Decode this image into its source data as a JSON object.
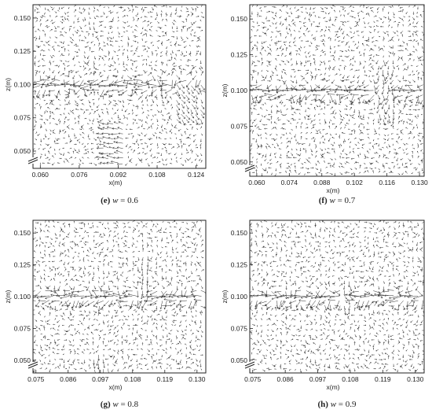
{
  "chart_data": [
    {
      "type": "vector-field",
      "caption_letter": "(e)",
      "caption_var": "w",
      "caption_value": "= 0.6",
      "xlabel": "x(m)",
      "ylabel": "z(m)",
      "x_ticks": [
        "0.060",
        "0.076",
        "0.092",
        "0.108",
        "0.124"
      ],
      "x_tick_values": [
        0.06,
        0.076,
        0.092,
        0.108,
        0.124
      ],
      "xlim": [
        0.057,
        0.128
      ],
      "y_ticks": [
        "0.150",
        "0.125",
        "0.100",
        "0.075",
        "0.050"
      ],
      "y_tick_values": [
        0.15,
        0.125,
        0.1,
        0.075,
        0.05
      ],
      "ylim": [
        0.037,
        0.16
      ],
      "shear_layer_z": 0.1,
      "features": [
        "strong horizontal jet along z = 0.100 m",
        "downward plume near x = 0.088–0.095 m",
        "deflected flow near x = 0.120 m"
      ]
    },
    {
      "type": "vector-field",
      "caption_letter": "(f)",
      "caption_var": "w",
      "caption_value": "= 0.7",
      "xlabel": "x(m)",
      "ylabel": "z(m)",
      "x_ticks": [
        "0.060",
        "0.074",
        "0.088",
        "0.102",
        "0.116",
        "0.130"
      ],
      "x_tick_values": [
        0.06,
        0.074,
        0.088,
        0.102,
        0.116,
        0.13
      ],
      "xlim": [
        0.057,
        0.132
      ],
      "y_ticks": [
        "0.150",
        "0.125",
        "0.100",
        "0.075",
        "0.050"
      ],
      "y_tick_values": [
        0.15,
        0.125,
        0.1,
        0.075,
        0.05
      ],
      "ylim": [
        0.04,
        0.16
      ],
      "shear_layer_z": 0.1,
      "features": [
        "strong horizontal jet along z = 0.100 m",
        "vortical region near x = 0.112–0.118 m"
      ]
    },
    {
      "type": "vector-field",
      "caption_letter": "(g)",
      "caption_var": "w",
      "caption_value": "= 0.8",
      "xlabel": "x(m)",
      "ylabel": "z(m)",
      "x_ticks": [
        "0.075",
        "0.086",
        "0.097",
        "0.108",
        "0.119",
        "0.130"
      ],
      "x_tick_values": [
        0.075,
        0.086,
        0.097,
        0.108,
        0.119,
        0.13
      ],
      "xlim": [
        0.074,
        0.133
      ],
      "y_ticks": [
        "0.150",
        "0.125",
        "0.100",
        "0.075",
        "0.050"
      ],
      "y_tick_values": [
        0.15,
        0.125,
        0.1,
        0.075,
        0.05
      ],
      "ylim": [
        0.04,
        0.16
      ],
      "shear_layer_z": 0.1,
      "features": [
        "strong horizontal jet along z = 0.100 m",
        "vertical plume near x = 0.112 m",
        "cluster near x = 0.097, z = 0.045 m"
      ]
    },
    {
      "type": "vector-field",
      "caption_letter": "(h)",
      "caption_var": "w",
      "caption_value": "= 0.9",
      "xlabel": "x(m)",
      "ylabel": "z(m)",
      "x_ticks": [
        "0.075",
        "0.086",
        "0.097",
        "0.108",
        "0.119",
        "0.130"
      ],
      "x_tick_values": [
        0.075,
        0.086,
        0.097,
        0.108,
        0.119,
        0.13
      ],
      "xlim": [
        0.074,
        0.133
      ],
      "y_ticks": [
        "0.150",
        "0.125",
        "0.100",
        "0.075",
        "0.050"
      ],
      "y_tick_values": [
        0.15,
        0.125,
        0.1,
        0.075,
        0.05
      ],
      "ylim": [
        0.04,
        0.16
      ],
      "shear_layer_z": 0.1,
      "features": [
        "strong horizontal jet along z = 0.100 m",
        "weaker recirculation near x = 0.105–0.110 m"
      ]
    }
  ]
}
